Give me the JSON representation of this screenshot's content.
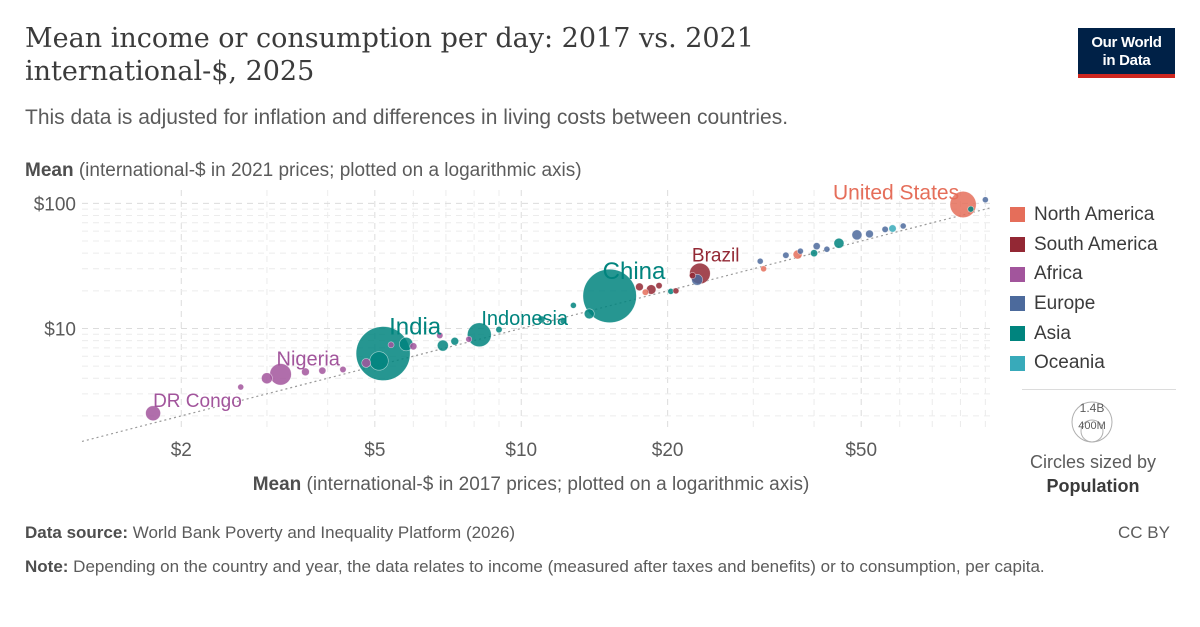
{
  "title_line1": "Mean income or consumption per day: 2017 vs. 2021",
  "title_line2": "international-$, 2025",
  "subtitle": "This data is adjusted for inflation and differences in living costs between countries.",
  "logo": {
    "line1": "Our World",
    "line2": "in Data"
  },
  "chart_data": {
    "type": "scatter",
    "title": "Mean income or consumption per day: 2017 vs. 2021 international-$, 2025",
    "xlabel_bold": "Mean",
    "xlabel_rest": " (international-$ in 2017 prices; plotted on a logarithmic axis)",
    "ylabel_bold": "Mean",
    "ylabel_rest": " (international-$ in 2021 prices; plotted on a logarithmic axis)",
    "xscale": "log",
    "yscale": "log",
    "xlim": [
      1.25,
      92
    ],
    "ylim": [
      1.6,
      128
    ],
    "xticks": [
      {
        "value": 2,
        "label": "$2"
      },
      {
        "value": 5,
        "label": "$5"
      },
      {
        "value": 10,
        "label": "$10"
      },
      {
        "value": 20,
        "label": "$20"
      },
      {
        "value": 50,
        "label": "$50"
      }
    ],
    "yticks": [
      {
        "value": 10,
        "label": "$10"
      },
      {
        "value": 100,
        "label": "$100"
      }
    ],
    "grid": true,
    "legend_position": "right",
    "regions": [
      {
        "name": "North America",
        "color": "#e56e5a"
      },
      {
        "name": "South America",
        "color": "#932834"
      },
      {
        "name": "Africa",
        "color": "#a2559c"
      },
      {
        "name": "Europe",
        "color": "#4c6a9c"
      },
      {
        "name": "Asia",
        "color": "#00847e"
      },
      {
        "name": "Oceania",
        "color": "#38aaba"
      }
    ],
    "points": [
      {
        "label": "United States",
        "region": "North America",
        "x": 81,
        "y": 98,
        "pop": 340
      },
      {
        "label": "Brazil",
        "region": "South America",
        "x": 23.3,
        "y": 27.5,
        "pop": 212
      },
      {
        "label": "China",
        "region": "Asia",
        "x": 15.2,
        "y": 18.2,
        "pop": 1410
      },
      {
        "label": "Indonesia",
        "region": "Asia",
        "x": 8.2,
        "y": 8.9,
        "pop": 281
      },
      {
        "label": "India",
        "region": "Asia",
        "x": 5.2,
        "y": 6.3,
        "pop": 1440
      },
      {
        "label": "Nigeria",
        "region": "Africa",
        "x": 3.2,
        "y": 4.3,
        "pop": 230
      },
      {
        "label": "DR Congo",
        "region": "Africa",
        "x": 1.75,
        "y": 2.1,
        "pop": 110
      },
      {
        "label": "",
        "region": "Africa",
        "x": 2.65,
        "y": 3.4,
        "pop": 15
      },
      {
        "label": "",
        "region": "Africa",
        "x": 3.0,
        "y": 4.0,
        "pop": 60
      },
      {
        "label": "",
        "region": "Africa",
        "x": 3.6,
        "y": 4.5,
        "pop": 30
      },
      {
        "label": "",
        "region": "Africa",
        "x": 3.9,
        "y": 4.6,
        "pop": 25
      },
      {
        "label": "",
        "region": "Africa",
        "x": 4.3,
        "y": 4.7,
        "pop": 20
      },
      {
        "label": "",
        "region": "Africa",
        "x": 4.8,
        "y": 5.3,
        "pop": 40
      },
      {
        "label": "",
        "region": "Africa",
        "x": 5.4,
        "y": 7.4,
        "pop": 18
      },
      {
        "label": "",
        "region": "Africa",
        "x": 6.0,
        "y": 7.2,
        "pop": 25
      },
      {
        "label": "",
        "region": "Africa",
        "x": 6.8,
        "y": 8.8,
        "pop": 20
      },
      {
        "label": "",
        "region": "Africa",
        "x": 7.8,
        "y": 8.2,
        "pop": 15
      },
      {
        "label": "",
        "region": "Asia",
        "x": 5.1,
        "y": 5.5,
        "pop": 170
      },
      {
        "label": "",
        "region": "Asia",
        "x": 5.8,
        "y": 7.5,
        "pop": 90
      },
      {
        "label": "",
        "region": "Asia",
        "x": 6.9,
        "y": 7.3,
        "pop": 60
      },
      {
        "label": "",
        "region": "Asia",
        "x": 7.3,
        "y": 7.9,
        "pop": 30
      },
      {
        "label": "",
        "region": "Asia",
        "x": 9.0,
        "y": 9.8,
        "pop": 20
      },
      {
        "label": "",
        "region": "Asia",
        "x": 11.0,
        "y": 11.8,
        "pop": 25
      },
      {
        "label": "",
        "region": "Asia",
        "x": 12.2,
        "y": 11.5,
        "pop": 20
      },
      {
        "label": "",
        "region": "Asia",
        "x": 12.8,
        "y": 15.3,
        "pop": 12
      },
      {
        "label": "",
        "region": "Asia",
        "x": 13.8,
        "y": 13.1,
        "pop": 50
      },
      {
        "label": "",
        "region": "Asia",
        "x": 20.3,
        "y": 19.8,
        "pop": 12
      },
      {
        "label": "",
        "region": "Asia",
        "x": 40.0,
        "y": 40.0,
        "pop": 25
      },
      {
        "label": "",
        "region": "Asia",
        "x": 45.0,
        "y": 48.0,
        "pop": 50
      },
      {
        "label": "",
        "region": "Asia",
        "x": 84.0,
        "y": 90.0,
        "pop": 6
      },
      {
        "label": "",
        "region": "South America",
        "x": 17.5,
        "y": 21.5,
        "pop": 30
      },
      {
        "label": "",
        "region": "South America",
        "x": 18.5,
        "y": 20.5,
        "pop": 45
      },
      {
        "label": "",
        "region": "South America",
        "x": 19.2,
        "y": 22.0,
        "pop": 20
      },
      {
        "label": "",
        "region": "South America",
        "x": 20.8,
        "y": 20.0,
        "pop": 10
      },
      {
        "label": "",
        "region": "South America",
        "x": 22.5,
        "y": 26.5,
        "pop": 20
      },
      {
        "label": "",
        "region": "North America",
        "x": 18.0,
        "y": 19.5,
        "pop": 20
      },
      {
        "label": "",
        "region": "North America",
        "x": 31.5,
        "y": 30.0,
        "pop": 10
      },
      {
        "label": "",
        "region": "North America",
        "x": 37.0,
        "y": 39.0,
        "pop": 40
      },
      {
        "label": "",
        "region": "Europe",
        "x": 23.0,
        "y": 24.5,
        "pop": 60
      },
      {
        "label": "",
        "region": "Europe",
        "x": 31.0,
        "y": 34.5,
        "pop": 10
      },
      {
        "label": "",
        "region": "Europe",
        "x": 35.0,
        "y": 38.5,
        "pop": 20
      },
      {
        "label": "",
        "region": "Europe",
        "x": 37.5,
        "y": 41.5,
        "pop": 15
      },
      {
        "label": "",
        "region": "Europe",
        "x": 40.5,
        "y": 45.5,
        "pop": 25
      },
      {
        "label": "",
        "region": "Europe",
        "x": 42.5,
        "y": 43.0,
        "pop": 10
      },
      {
        "label": "",
        "region": "Europe",
        "x": 49.0,
        "y": 56.0,
        "pop": 50
      },
      {
        "label": "",
        "region": "Europe",
        "x": 52.0,
        "y": 57.0,
        "pop": 30
      },
      {
        "label": "",
        "region": "Europe",
        "x": 56.0,
        "y": 62.0,
        "pop": 20
      },
      {
        "label": "",
        "region": "Europe",
        "x": 61.0,
        "y": 66.0,
        "pop": 12
      },
      {
        "label": "",
        "region": "Europe",
        "x": 90.0,
        "y": 107.0,
        "pop": 6
      },
      {
        "label": "",
        "region": "Oceania",
        "x": 58.0,
        "y": 63.0,
        "pop": 27
      }
    ]
  },
  "size_legend": {
    "title": "Circles sized by",
    "variable": "Population",
    "large_label": "1.4B",
    "small_label": "400M"
  },
  "footer": {
    "source_label": "Data source:",
    "source_text": " World Bank Poverty and Inequality Platform (2026)",
    "license": "CC BY",
    "note_label": "Note:",
    "note_text": " Depending on the country and year, the data relates to income (measured after taxes and benefits) or to consumption, per capita."
  }
}
